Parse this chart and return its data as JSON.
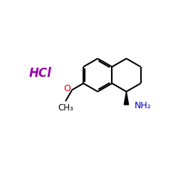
{
  "bg_color": "#ffffff",
  "bond_color": "#000000",
  "nh2_color": "#0000cc",
  "o_color": "#cc0000",
  "hcl_color": "#9900aa",
  "line_width": 1.5,
  "fig_size": [
    2.5,
    2.5
  ],
  "dpi": 100,
  "hcl_text": "HCl",
  "nh2_text": "NH₂",
  "o_text": "O",
  "ch3_text": "CH₃"
}
